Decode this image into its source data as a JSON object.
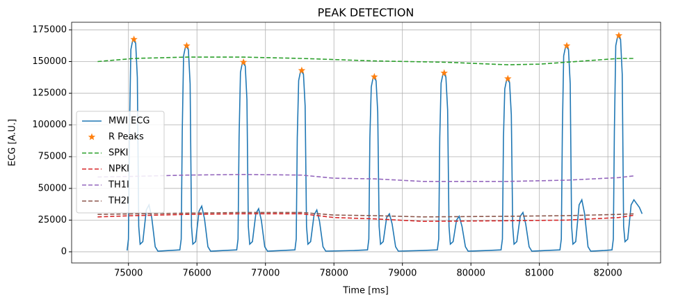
{
  "chart_data": {
    "type": "line",
    "title": "PEAK DETECTION",
    "xlabel": "Time [ms]",
    "ylabel": "ECG [A.U.]",
    "xlim": [
      74170,
      82770
    ],
    "ylim": [
      -8800,
      181000
    ],
    "xticks": [
      75000,
      76000,
      77000,
      78000,
      79000,
      80000,
      81000,
      82000
    ],
    "yticks": [
      0,
      25000,
      50000,
      75000,
      100000,
      125000,
      150000,
      175000
    ],
    "grid": true,
    "legend": "center left",
    "series": [
      {
        "name": "MWI ECG",
        "color": "#1f77b4",
        "linestyle": "-",
        "x": [
          74980,
          75000,
          75015,
          75035,
          75065,
          75105,
          75130,
          75150,
          75170,
          75210,
          75260,
          75300,
          75340,
          75390,
          75430,
          75600,
          75750,
          75770,
          75785,
          75805,
          75835,
          75875,
          75900,
          75920,
          75940,
          75980,
          76030,
          76070,
          76110,
          76160,
          76200,
          76400,
          76580,
          76600,
          76615,
          76635,
          76665,
          76705,
          76730,
          76750,
          76770,
          76810,
          76860,
          76900,
          76940,
          76990,
          77030,
          77250,
          77430,
          77450,
          77465,
          77485,
          77515,
          77555,
          77580,
          77600,
          77620,
          77660,
          77710,
          77750,
          77790,
          77840,
          77880,
          78300,
          78490,
          78510,
          78525,
          78545,
          78575,
          78615,
          78640,
          78660,
          78680,
          78720,
          78770,
          78810,
          78850,
          78900,
          78940,
          79300,
          79510,
          79530,
          79545,
          79565,
          79595,
          79635,
          79660,
          79680,
          79700,
          79740,
          79790,
          79830,
          79870,
          79920,
          79960,
          80250,
          80440,
          80460,
          80475,
          80495,
          80525,
          80565,
          80590,
          80610,
          80630,
          80670,
          80720,
          80760,
          80800,
          80850,
          80890,
          81100,
          81300,
          81320,
          81335,
          81355,
          81385,
          81425,
          81450,
          81470,
          81490,
          81530,
          81580,
          81620,
          81660,
          81710,
          81750,
          81950,
          82060,
          82080,
          82095,
          82115,
          82145,
          82185,
          82210,
          82230,
          82250,
          82290,
          82340,
          82380,
          82420,
          82460,
          82500
        ],
        "values": [
          1000,
          10000,
          95000,
          159500,
          167500,
          164500,
          137500,
          20000,
          6000,
          8000,
          33000,
          37000,
          27000,
          4000,
          500,
          1000,
          1500,
          10000,
          95000,
          154500,
          162500,
          159500,
          132500,
          20000,
          6000,
          8000,
          32000,
          36000,
          26000,
          4000,
          500,
          1000,
          1500,
          10000,
          90000,
          141500,
          149500,
          146500,
          120000,
          20000,
          6000,
          8000,
          30000,
          34000,
          25000,
          4000,
          500,
          1000,
          1500,
          10000,
          90000,
          135000,
          143000,
          140000,
          115000,
          20000,
          6000,
          8000,
          29000,
          33000,
          24000,
          4000,
          500,
          1000,
          1500,
          10000,
          90000,
          130000,
          138000,
          135000,
          110000,
          20000,
          6000,
          8000,
          27000,
          30000,
          22000,
          4000,
          500,
          1000,
          1500,
          10000,
          90000,
          133000,
          141000,
          138000,
          112000,
          20000,
          6000,
          8000,
          25000,
          28000,
          20000,
          4000,
          500,
          1000,
          1500,
          10000,
          90000,
          128500,
          136500,
          133500,
          108000,
          20000,
          6000,
          8000,
          28000,
          31000,
          22000,
          4000,
          500,
          1000,
          1500,
          10000,
          95000,
          154500,
          162500,
          159500,
          132500,
          20000,
          6000,
          8000,
          37000,
          41000,
          30000,
          4000,
          500,
          1000,
          1500,
          10000,
          95000,
          162500,
          170500,
          167500,
          140000,
          20000,
          8000,
          10000,
          37000,
          41000,
          38000,
          35000,
          30000
        ]
      },
      {
        "name": "R Peaks",
        "color": "#ff7f0e",
        "linestyle": "none",
        "marker": "*",
        "x": [
          75080,
          75850,
          76680,
          77530,
          78590,
          79610,
          80540,
          81400,
          82160
        ],
        "values": [
          167500,
          162500,
          149500,
          143000,
          138000,
          141000,
          136500,
          162500,
          170500
        ]
      },
      {
        "name": "SPKI",
        "color": "#2ca02c",
        "linestyle": "--",
        "x": [
          74550,
          75080,
          75850,
          76680,
          77530,
          78590,
          79610,
          80540,
          81000,
          81400,
          82160,
          82400
        ],
        "values": [
          150000,
          152500,
          153500,
          153500,
          152500,
          150500,
          149500,
          147500,
          148000,
          149500,
          152500,
          152500
        ]
      },
      {
        "name": "NPKI",
        "color": "#d62728",
        "linestyle": "--",
        "x": [
          74550,
          75080,
          75850,
          76680,
          77530,
          78000,
          78590,
          79300,
          80540,
          81400,
          82160,
          82400
        ],
        "values": [
          27500,
          28500,
          29500,
          30000,
          30000,
          27000,
          26000,
          24000,
          24500,
          25000,
          27000,
          29000
        ]
      },
      {
        "name": "TH1I",
        "color": "#9467bd",
        "linestyle": "--",
        "x": [
          74550,
          75080,
          75850,
          76680,
          77530,
          78000,
          78590,
          79300,
          80540,
          81400,
          82160,
          82400
        ],
        "values": [
          59000,
          59500,
          60500,
          61000,
          60500,
          58000,
          57500,
          55500,
          55500,
          56500,
          58500,
          60000
        ]
      },
      {
        "name": "TH2I",
        "color": "#8c564b",
        "linestyle": "--",
        "x": [
          74550,
          75850,
          76680,
          77530,
          78000,
          78590,
          79300,
          80540,
          81400,
          82160,
          82400
        ],
        "values": [
          29500,
          30500,
          31000,
          31000,
          29000,
          28500,
          27500,
          28000,
          28500,
          29500,
          30000
        ]
      }
    ]
  }
}
